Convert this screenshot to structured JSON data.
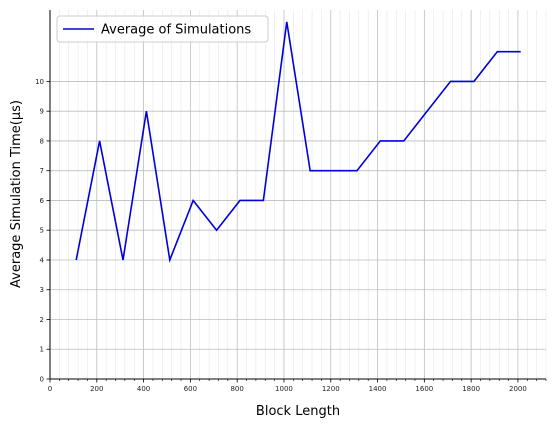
{
  "chart_data": {
    "type": "line",
    "title": "",
    "xlabel": "Block Length",
    "ylabel": "Average Simulation Time(µs)",
    "xlim": [
      0,
      2120
    ],
    "ylim": [
      0,
      12.4
    ],
    "x_ticks": [
      0,
      200,
      400,
      600,
      800,
      1000,
      1200,
      1400,
      1600,
      1800,
      2000
    ],
    "y_ticks": [
      0,
      1,
      2,
      3,
      4,
      5,
      6,
      7,
      8,
      9,
      10
    ],
    "grid": true,
    "legend": "top-left",
    "series": [
      {
        "name": "Average of Simulations",
        "color": "#0000dd",
        "x": [
          112,
          212,
          312,
          412,
          512,
          612,
          712,
          812,
          912,
          1012,
          1112,
          1212,
          1312,
          1412,
          1512,
          1612,
          1712,
          1812,
          1912,
          2012
        ],
        "values": [
          4,
          8,
          4,
          9,
          4,
          6,
          5,
          6,
          6,
          12,
          7,
          7,
          7,
          8,
          8,
          9,
          10,
          10,
          11,
          11
        ]
      }
    ]
  }
}
